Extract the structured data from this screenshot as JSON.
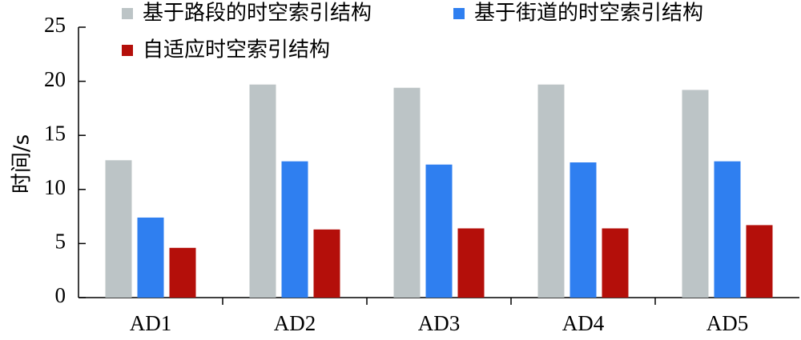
{
  "chart_data": {
    "type": "bar",
    "title": "",
    "xlabel": "",
    "ylabel": "时间/s",
    "ylim": [
      0,
      25
    ],
    "yticks": [
      0,
      5,
      10,
      15,
      20,
      25
    ],
    "grid": false,
    "legend_position": "top",
    "categories": [
      "AD1",
      "AD2",
      "AD3",
      "AD4",
      "AD5"
    ],
    "series": [
      {
        "name": "基于路段的时空索引结构",
        "color": "#bcc4c6",
        "values": [
          12.7,
          19.7,
          19.4,
          19.7,
          19.2
        ]
      },
      {
        "name": "基于街道的时空索引结构",
        "color": "#2f7ff0",
        "values": [
          7.4,
          12.6,
          12.3,
          12.5,
          12.6
        ]
      },
      {
        "name": "自适应时空索引结构",
        "color": "#b40f0a",
        "values": [
          4.6,
          6.3,
          6.4,
          6.4,
          6.7
        ]
      }
    ]
  }
}
